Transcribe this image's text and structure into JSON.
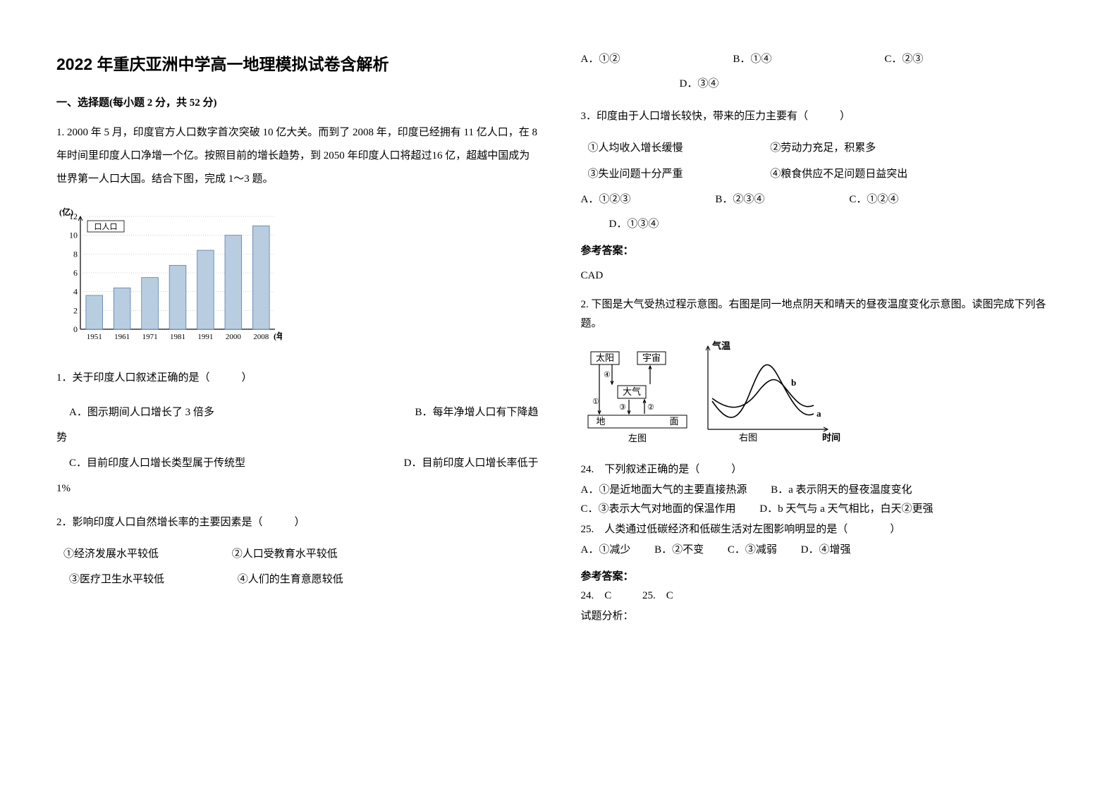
{
  "title": "2022 年重庆亚洲中学高一地理模拟试卷含解析",
  "section1": "一、选择题(每小题 2 分，共 52 分)",
  "q1_intro": "1. 2000 年 5 月，印度官方人口数字首次突破 10 亿大关。而到了 2008 年，印度已经拥有 11 亿人口，在 8 年时间里印度人口净增一个亿。按照目前的增长趋势，到 2050 年印度人口将超过16 亿，超越中国成为世界第一人口大国。结合下图，完成 1～3 题。",
  "chart1": {
    "type": "bar",
    "y_label": "(亿)",
    "x_label": "(年)",
    "legend": "口人口",
    "y_ticks": [
      0,
      2,
      4,
      6,
      8,
      10,
      12
    ],
    "categories": [
      "1951",
      "1961",
      "1971",
      "1981",
      "1991",
      "2000",
      "2008"
    ],
    "values": [
      3.6,
      4.4,
      5.5,
      6.8,
      8.4,
      10.0,
      11.0
    ],
    "y_max": 12,
    "bar_fill": "#b8cde0",
    "bar_stroke": "#5a7ca8",
    "axis_color": "#000000",
    "grid_color": "#888888",
    "font_size": 12,
    "bar_width": 0.6
  },
  "q1_stem": "1．关于印度人口叙述正确的是（　　　）",
  "q1_opts": {
    "a": "A．图示期间人口增长了 3 倍多",
    "b": "B．每年净增人口有下降趋势",
    "c": "C．目前印度人口增长类型属于传统型",
    "d": "D．目前印度人口增长率低于1%"
  },
  "q2_stem": "2．影响印度人口自然增长率的主要因素是（　　　）",
  "q2_subs": {
    "s1": "①经济发展水平较低",
    "s2": "②人口受教育水平较低",
    "s3": "③医疗卫生水平较低",
    "s4": "④人们的生育意愿较低"
  },
  "q2_opts": {
    "a": "A．①②",
    "b": "B．①④",
    "c": "C．②③",
    "d": "D．③④"
  },
  "q3_stem": "3．印度由于人口增长较快，带来的压力主要有（　　　）",
  "q3_subs": {
    "s1": "①人均收入增长缓慢",
    "s2": "②劳动力充足，积累多",
    "s3": "③失业问题十分严重",
    "s4": "④粮食供应不足问题日益突出"
  },
  "q3_opts": {
    "a": "A．①②③",
    "b": "B．②③④",
    "c": "C．①②④",
    "d": "D．①③④"
  },
  "ans_label": "参考答案：",
  "ans1": "CAD",
  "q_block2_intro": "2. 下图是大气受热过程示意图。右图是同一地点阴天和晴天的昼夜温度变化示意图。读图完成下列各题。",
  "diagram": {
    "left": {
      "sun": "太阳",
      "space": "宇宙",
      "air": "大气",
      "ground_l": "地",
      "ground_r": "面",
      "arrows": [
        "①",
        "②",
        "③",
        "④"
      ],
      "label": "左图"
    },
    "right": {
      "y_axis": "气温",
      "x_axis": "时间",
      "curves": {
        "a": "a",
        "b": "b"
      },
      "label": "右图",
      "curve_color": "#000000"
    },
    "font_size": 13
  },
  "q24_stem": "24.　下列叙述正确的是（　　　）",
  "q24_opts": {
    "a": "A．①是近地面大气的主要直接热源",
    "b": "B．a 表示阴天的昼夜温度变化",
    "c": "C．③表示大气对地面的保温作用",
    "d": "D．b 天气与 a 天气相比，白天②更强"
  },
  "q25_stem": "25.　人类通过低碳经济和低碳生活对左图影响明显的是（　　　　）",
  "q25_opts": {
    "a": "A．①减少",
    "b": "B．②不变",
    "c": "C．③减弱",
    "d": "D．④增强"
  },
  "ans2_24": "24.　C",
  "ans2_25": "25.　C",
  "analysis_label": "试题分析："
}
